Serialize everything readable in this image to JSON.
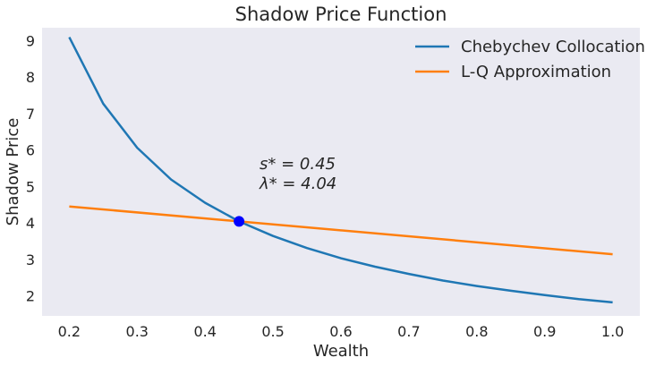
{
  "chart_data": {
    "type": "line",
    "title": "Shadow Price Function",
    "xlabel": "Wealth",
    "ylabel": "Shadow Price",
    "xlim": [
      0.16,
      1.04
    ],
    "ylim": [
      1.45,
      9.35
    ],
    "xticks": [
      0.2,
      0.3,
      0.4,
      0.5,
      0.6,
      0.7,
      0.8,
      0.9,
      1.0
    ],
    "xtick_labels": [
      "0.2",
      "0.3",
      "0.4",
      "0.5",
      "0.6",
      "0.7",
      "0.8",
      "0.9",
      "1.0"
    ],
    "yticks": [
      2,
      3,
      4,
      5,
      6,
      7,
      8,
      9
    ],
    "ytick_labels": [
      "2",
      "3",
      "4",
      "5",
      "6",
      "7",
      "8",
      "9"
    ],
    "grid": false,
    "legend_position": "top-right",
    "series": [
      {
        "name": "Chebychev Collocation",
        "color": "#1f77b4",
        "x": [
          0.2,
          0.25,
          0.3,
          0.35,
          0.4,
          0.45,
          0.5,
          0.55,
          0.6,
          0.65,
          0.7,
          0.75,
          0.8,
          0.85,
          0.9,
          0.95,
          1.0
        ],
        "y": [
          9.09,
          7.27,
          6.06,
          5.19,
          4.55,
          4.04,
          3.64,
          3.31,
          3.03,
          2.8,
          2.6,
          2.42,
          2.27,
          2.14,
          2.02,
          1.91,
          1.82
        ]
      },
      {
        "name": "L-Q Approximation",
        "color": "#ff7f0e",
        "x": [
          0.2,
          1.0
        ],
        "y": [
          4.45,
          3.14
        ]
      }
    ],
    "annotations": {
      "point": {
        "x": 0.45,
        "y": 4.04,
        "color": "#0000ff"
      },
      "line1": "s* = 0.45",
      "line2": "λ* = 4.04"
    }
  }
}
